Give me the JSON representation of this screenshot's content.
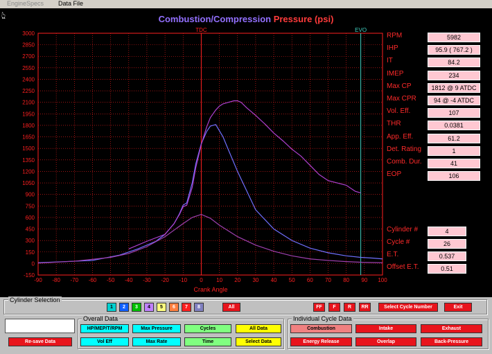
{
  "menu": {
    "engine_specs": "EngineSpecs",
    "data_file": "Data File"
  },
  "title": {
    "part1": "Combustion/Compression ",
    "part2": "Pressure (psi)"
  },
  "chart_markers": {
    "tdc": "TDC",
    "evo": "EVO"
  },
  "chart_data": {
    "type": "line",
    "xlabel": "Crank Angle",
    "ylabel": "",
    "xlim": [
      -90,
      100
    ],
    "ylim": [
      -150,
      3000
    ],
    "x_ticks": [
      -90,
      -80,
      -70,
      -60,
      -50,
      -40,
      -30,
      -20,
      -10,
      0,
      10,
      20,
      30,
      40,
      50,
      60,
      70,
      80,
      90,
      100
    ],
    "y_ticks": [
      3000,
      2850,
      2700,
      2550,
      2400,
      2250,
      2100,
      1950,
      1800,
      1650,
      1500,
      1350,
      1200,
      1050,
      900,
      750,
      600,
      450,
      300,
      150,
      0,
      -150
    ],
    "x_tick_labels": [
      "-90",
      "-80",
      "-70",
      "-60",
      "-50",
      "-40",
      "-30",
      "-20",
      "-10",
      "0",
      "10",
      "20",
      "30",
      "40",
      "50",
      "60",
      "70",
      "80",
      "90",
      "100"
    ],
    "y_tick_labels": [
      "3000",
      "2850",
      "2700",
      "2550",
      "2400",
      "2250",
      "2100",
      "1950",
      "1800",
      "1650",
      "1500",
      "1350",
      "1200",
      "1050",
      "900",
      "750",
      "600",
      "450",
      "300",
      "150",
      "0",
      "-150"
    ],
    "markers": [
      {
        "x": 0,
        "label": "TDC"
      },
      {
        "x": 88,
        "label": "EVO"
      }
    ],
    "grid": true,
    "series": [
      {
        "color": "#7070ff",
        "x": [
          -90,
          -60,
          -45,
          -35,
          -25,
          -20,
          -15,
          -12,
          -10,
          -8,
          -5,
          -3,
          0,
          3,
          5,
          8,
          12,
          15,
          20,
          25,
          30,
          40,
          50,
          60,
          70,
          80,
          88,
          95,
          100
        ],
        "y": [
          10,
          40,
          110,
          190,
          290,
          380,
          520,
          650,
          760,
          790,
          1050,
          1300,
          1560,
          1720,
          1790,
          1810,
          1650,
          1480,
          1200,
          950,
          700,
          450,
          300,
          200,
          140,
          100,
          80,
          70,
          60
        ]
      },
      {
        "color": "#b040d0",
        "x": [
          -40,
          -30,
          -20,
          -15,
          -12,
          -10,
          -8,
          -5,
          -3,
          0,
          3,
          5,
          8,
          10,
          12,
          15,
          18,
          20,
          22,
          25,
          30,
          35,
          40,
          45,
          50,
          55,
          60,
          65,
          70,
          75,
          80,
          85,
          88
        ],
        "y": [
          190,
          290,
          380,
          520,
          640,
          740,
          760,
          990,
          1250,
          1550,
          1780,
          1900,
          2000,
          2050,
          2080,
          2100,
          2120,
          2120,
          2100,
          2030,
          1930,
          1820,
          1700,
          1600,
          1490,
          1400,
          1280,
          1160,
          1080,
          1050,
          1020,
          940,
          920
        ]
      },
      {
        "color": "#a040b0",
        "x": [
          -90,
          -70,
          -50,
          -40,
          -30,
          -20,
          -10,
          -5,
          0,
          5,
          10,
          20,
          30,
          40,
          50,
          60,
          70,
          80,
          90,
          100
        ],
        "y": [
          5,
          30,
          80,
          130,
          220,
          350,
          520,
          600,
          640,
          590,
          500,
          350,
          240,
          160,
          100,
          60,
          40,
          25,
          15,
          10
        ]
      }
    ]
  },
  "stats": [
    {
      "label": "RPM",
      "value": "5982"
    },
    {
      "label": "IHP",
      "value": "95.9 ( 767.2 )"
    },
    {
      "label": "IT",
      "value": "84.2"
    },
    {
      "label": "IMEP",
      "value": "234"
    },
    {
      "label": "Max CP",
      "value": "1812 @ 9 ATDC"
    },
    {
      "label": "Max CPR",
      "value": "94 @ -4 ATDC"
    },
    {
      "label": "Vol. Eff.",
      "value": "107"
    },
    {
      "label": "THR",
      "value": "0.0381"
    },
    {
      "label": "App. Eff.",
      "value": "61.2"
    },
    {
      "label": "Det. Rating",
      "value": "1"
    },
    {
      "label": "Comb. Dur.",
      "value": "41"
    },
    {
      "label": "EOP",
      "value": "106"
    }
  ],
  "cycle_stats": [
    {
      "label": "Cylinder #",
      "value": "4"
    },
    {
      "label": "Cycle #",
      "value": "26"
    },
    {
      "label": "E.T.",
      "value": "0.537"
    },
    {
      "label": "Offset E.T.",
      "value": "0.51"
    }
  ],
  "cylinder_selection": {
    "title": "Cylinder Selection",
    "buttons": [
      {
        "label": "1",
        "color": "#00d0d0"
      },
      {
        "label": "2",
        "color": "#1060ff"
      },
      {
        "label": "3",
        "color": "#00c000"
      },
      {
        "label": "4",
        "color": "#c080ff"
      },
      {
        "label": "5",
        "color": "#ffff80"
      },
      {
        "label": "6",
        "color": "#ff8040"
      },
      {
        "label": "7",
        "color": "#ff2020"
      },
      {
        "label": "8",
        "color": "#8080c0"
      }
    ],
    "all": "All",
    "nav": [
      "FF",
      "F",
      "R",
      "RR"
    ],
    "select_cycle": "Select Cycle Number",
    "exit": "Exit"
  },
  "overall_data": {
    "title": "Overall Data",
    "hp": "HP/MEP/T/RPM",
    "max_pressure": "Max Pressure",
    "cycles": "Cycles",
    "all_data": "All Data",
    "vol_eff": "Vol Eff",
    "max_rate": "Max Rate",
    "time": "Time",
    "select_data": "Select Data"
  },
  "individual_cycle": {
    "title": "Individual Cycle Data",
    "combustion": "Combustion",
    "intake": "Intake",
    "exhaust": "Exhaust",
    "energy_release": "Energy Release",
    "overlap": "Overlap",
    "back_pressure": "Back-Pressure"
  },
  "re_save": "Re-save Data"
}
